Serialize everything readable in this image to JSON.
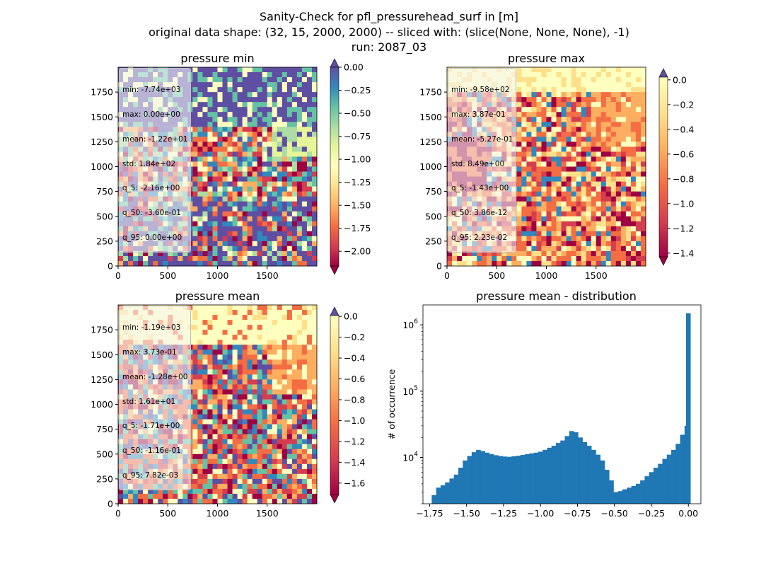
{
  "figure": {
    "title_line1": "Sanity-Check for pfl_pressurehead_surf in [m]",
    "title_line2": "original data shape: (32, 15, 2000, 2000) -- sliced with: (slice(None, None, None), -1)",
    "title_line3": "run: 2087_03"
  },
  "panels": {
    "min": {
      "title": "pressure min",
      "stats": [
        "min: -7.74e+03",
        "max: 0.00e+00",
        "mean: -1.22e+01",
        "std: 1.84e+02",
        "q_5: -2.16e+00",
        "q_50: -3.60e-01",
        "q_95: 0.00e+00"
      ]
    },
    "max": {
      "title": "pressure max",
      "stats": [
        "min: -9.58e+02",
        "max: 3.87e-01",
        "mean: -5.27e-01",
        "std: 8.49e+00",
        "q_5: -1.43e+00",
        "q_50: 3.86e-12",
        "q_95: 2.23e-02"
      ]
    },
    "mean": {
      "title": "pressure mean",
      "stats": [
        "min: -1.19e+03",
        "max: 3.73e-01",
        "mean: -1.28e+00",
        "std: 1.61e+01",
        "q_5: -1.71e+00",
        "q_50: -1.16e-01",
        "q_95: 7.82e-03"
      ]
    },
    "hist": {
      "title": "pressure mean - distribution",
      "ylabel": "# of occurrence"
    }
  },
  "chart_data": [
    {
      "type": "heatmap",
      "name": "pressure min",
      "x_ticks": [
        "0",
        "500",
        "1000",
        "1500"
      ],
      "y_ticks": [
        "0",
        "250",
        "500",
        "750",
        "1000",
        "1250",
        "1500",
        "1750"
      ],
      "xlim": [
        0,
        2000
      ],
      "ylim": [
        0,
        2000
      ],
      "colorbar": {
        "ticks": [
          "0.00",
          "-0.25",
          "-0.50",
          "-0.75",
          "-1.00",
          "-1.25",
          "-1.50",
          "-1.75",
          "-2.00"
        ],
        "range": [
          -2.16,
          0.0
        ],
        "extend": "both",
        "colormap": "Spectral"
      }
    },
    {
      "type": "heatmap",
      "name": "pressure max",
      "x_ticks": [
        "0",
        "500",
        "1000",
        "1500"
      ],
      "y_ticks": [
        "0",
        "250",
        "500",
        "750",
        "1000",
        "1250",
        "1500",
        "1750"
      ],
      "xlim": [
        0,
        2000
      ],
      "ylim": [
        0,
        2000
      ],
      "colorbar": {
        "ticks": [
          "0.0",
          "-0.2",
          "-0.4",
          "-0.6",
          "-0.8",
          "-1.0",
          "-1.2",
          "-1.4"
        ],
        "range": [
          -1.43,
          0.022
        ],
        "extend": "both",
        "colormap": "Spectral"
      }
    },
    {
      "type": "heatmap",
      "name": "pressure mean",
      "x_ticks": [
        "0",
        "500",
        "1000",
        "1500"
      ],
      "y_ticks": [
        "0",
        "250",
        "500",
        "750",
        "1000",
        "1250",
        "1500",
        "1750"
      ],
      "xlim": [
        0,
        2000
      ],
      "ylim": [
        0,
        2000
      ],
      "colorbar": {
        "ticks": [
          "0.0",
          "-0.2",
          "-0.4",
          "-0.6",
          "-0.8",
          "-1.0",
          "-1.2",
          "-1.4",
          "-1.6"
        ],
        "range": [
          -1.71,
          0.0078
        ],
        "extend": "both",
        "colormap": "Spectral"
      }
    },
    {
      "type": "bar",
      "name": "pressure mean - distribution",
      "ylabel": "# of occurrence",
      "yscale": "log",
      "xlim": [
        -1.795,
        0.085
      ],
      "ylim": [
        2000,
        2000000
      ],
      "x_ticks": [
        "−1.75",
        "−1.50",
        "−1.25",
        "−1.00",
        "−0.75",
        "−0.50",
        "−0.25",
        "0.00"
      ],
      "y_ticks": [
        "10^4",
        "10^5",
        "10^6"
      ],
      "bar_color": "#1f77b4",
      "points": [
        [
          -1.72,
          2700
        ],
        [
          -1.69,
          3500
        ],
        [
          -1.66,
          3800
        ],
        [
          -1.63,
          4200
        ],
        [
          -1.6,
          4800
        ],
        [
          -1.57,
          5500
        ],
        [
          -1.54,
          7000
        ],
        [
          -1.51,
          9000
        ],
        [
          -1.48,
          10500
        ],
        [
          -1.45,
          12000
        ],
        [
          -1.42,
          13000
        ],
        [
          -1.39,
          12500
        ],
        [
          -1.36,
          11800
        ],
        [
          -1.33,
          11200
        ],
        [
          -1.3,
          10800
        ],
        [
          -1.27,
          10500
        ],
        [
          -1.24,
          10300
        ],
        [
          -1.21,
          10200
        ],
        [
          -1.18,
          10400
        ],
        [
          -1.15,
          10600
        ],
        [
          -1.12,
          10900
        ],
        [
          -1.09,
          11200
        ],
        [
          -1.06,
          11500
        ],
        [
          -1.03,
          11800
        ],
        [
          -1.0,
          12200
        ],
        [
          -0.97,
          13000
        ],
        [
          -0.94,
          14000
        ],
        [
          -0.91,
          15000
        ],
        [
          -0.88,
          16500
        ],
        [
          -0.85,
          18000
        ],
        [
          -0.82,
          21000
        ],
        [
          -0.79,
          25000
        ],
        [
          -0.76,
          24000
        ],
        [
          -0.73,
          20000
        ],
        [
          -0.7,
          17000
        ],
        [
          -0.67,
          15000
        ],
        [
          -0.64,
          13000
        ],
        [
          -0.61,
          11000
        ],
        [
          -0.58,
          9000
        ],
        [
          -0.55,
          6500
        ],
        [
          -0.52,
          4500
        ],
        [
          -0.49,
          3000
        ],
        [
          -0.46,
          3100
        ],
        [
          -0.43,
          3300
        ],
        [
          -0.4,
          3500
        ],
        [
          -0.37,
          3700
        ],
        [
          -0.34,
          4000
        ],
        [
          -0.31,
          4500
        ],
        [
          -0.28,
          5200
        ],
        [
          -0.25,
          6000
        ],
        [
          -0.22,
          7000
        ],
        [
          -0.19,
          8000
        ],
        [
          -0.16,
          9500
        ],
        [
          -0.13,
          11000
        ],
        [
          -0.1,
          13000
        ],
        [
          -0.07,
          16000
        ],
        [
          -0.04,
          22000
        ],
        [
          -0.01,
          30000
        ],
        [
          0.0,
          1500000
        ]
      ]
    }
  ]
}
